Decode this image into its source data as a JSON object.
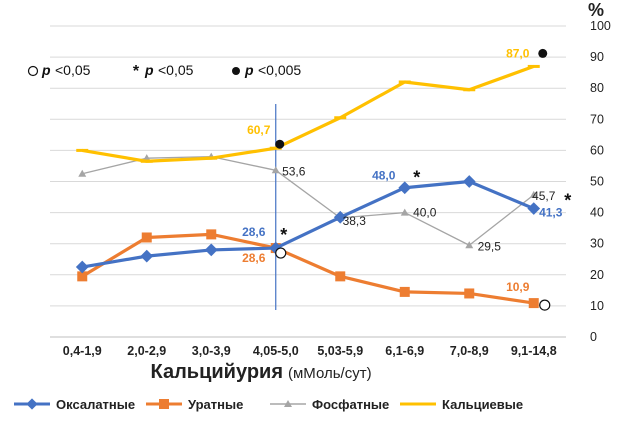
{
  "chart_data": {
    "type": "line",
    "categories": [
      "0,4-1,9",
      "2,0-2,9",
      "3,0-3,9",
      "4,05-5,0",
      "5,03-5,9",
      "6,1-6,9",
      "7,0-8,9",
      "9,1-14,8"
    ],
    "ylim": [
      0,
      100
    ],
    "yticks": [
      "0",
      "10",
      "20",
      "30",
      "40",
      "50",
      "60",
      "70",
      "80",
      "90",
      "100"
    ],
    "ylabel": "%",
    "xlabel_main": "Кальцийурия",
    "xlabel_unit": "(мМоль/сут)",
    "grid": "horizontal",
    "legend_position": "bottom",
    "series": [
      {
        "name": "Оксалатные",
        "color": "#4472c4",
        "values": [
          22.5,
          26,
          28,
          28.6,
          38.5,
          48,
          50,
          41.3
        ]
      },
      {
        "name": "Уратные",
        "color": "#ed7d31",
        "values": [
          19.5,
          32,
          33,
          28.6,
          19.5,
          14.5,
          14,
          10.9
        ]
      },
      {
        "name": "Фосфатные",
        "color": "#a5a5a5",
        "values": [
          52.5,
          57.5,
          58,
          53.6,
          38.3,
          40,
          29.5,
          45.7
        ]
      },
      {
        "name": "Кальциевые",
        "color": "#ffc000",
        "values": [
          60,
          56.5,
          57.5,
          60.7,
          70.5,
          82,
          79.5,
          87
        ]
      }
    ],
    "data_labels": [
      {
        "series": 0,
        "index": 3,
        "text": "28,6",
        "color": "#4472c4",
        "marker": "*"
      },
      {
        "series": 0,
        "index": 5,
        "text": "48,0",
        "color": "#4472c4",
        "marker": "*"
      },
      {
        "series": 0,
        "index": 7,
        "text": "41,3",
        "color": "#4472c4",
        "marker": "*"
      },
      {
        "series": 1,
        "index": 3,
        "text": "28,6",
        "color": "#ed7d31",
        "marker": "open"
      },
      {
        "series": 1,
        "index": 7,
        "text": "10,9",
        "color": "#ed7d31",
        "marker": "open"
      },
      {
        "series": 2,
        "index": 3,
        "text": "53,6",
        "color": "#222222",
        "marker": ""
      },
      {
        "series": 2,
        "index": 4,
        "text": "38,3",
        "color": "#222222",
        "marker": ""
      },
      {
        "series": 2,
        "index": 5,
        "text": "40,0",
        "color": "#222222",
        "marker": ""
      },
      {
        "series": 2,
        "index": 6,
        "text": "29,5",
        "color": "#222222",
        "marker": ""
      },
      {
        "series": 2,
        "index": 7,
        "text": "45,7",
        "color": "#222222",
        "marker": ""
      },
      {
        "series": 3,
        "index": 3,
        "text": "60,7",
        "color": "#ffc000",
        "marker": "filled"
      },
      {
        "series": 3,
        "index": 7,
        "text": "87,0",
        "color": "#ffc000",
        "marker": "filled"
      }
    ],
    "significance_legend": [
      {
        "symbol": "open-circle",
        "p": "p",
        "text": "<0,05"
      },
      {
        "symbol": "asterisk",
        "p": "p",
        "text": "<0,05"
      },
      {
        "symbol": "filled-circle",
        "p": "p",
        "text": "<0,005"
      }
    ],
    "reference_line_category": "4,05-5,0"
  }
}
